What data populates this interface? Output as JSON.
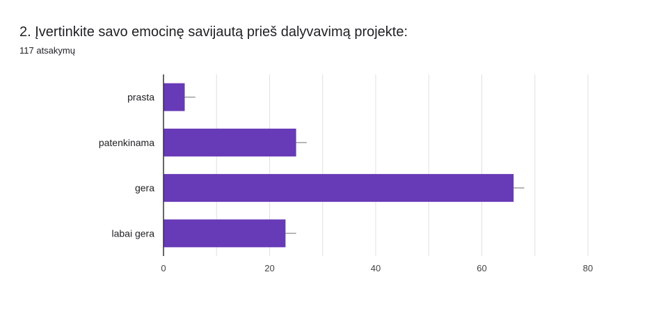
{
  "question": {
    "title": "2. Įvertinkite savo emocinę savijautą prieš dalyvavimą projekte:",
    "responses": "117 atsakymų"
  },
  "colors": {
    "bar": "#673ab7",
    "grid": "#e0e0e0",
    "axis": "#333333",
    "error_bar": "#9e9e9e",
    "label": "#202124",
    "tick": "#444444"
  },
  "chart_data": {
    "type": "bar",
    "orientation": "horizontal",
    "categories": [
      "prasta",
      "patenkinama",
      "gera",
      "labai gera"
    ],
    "values": [
      4,
      25,
      66,
      23
    ],
    "error_upper": [
      6,
      27,
      68,
      25
    ],
    "xlim": [
      0,
      80
    ],
    "xticks": [
      0,
      20,
      40,
      60,
      80
    ],
    "grid": true,
    "title": "",
    "xlabel": "",
    "ylabel": ""
  }
}
